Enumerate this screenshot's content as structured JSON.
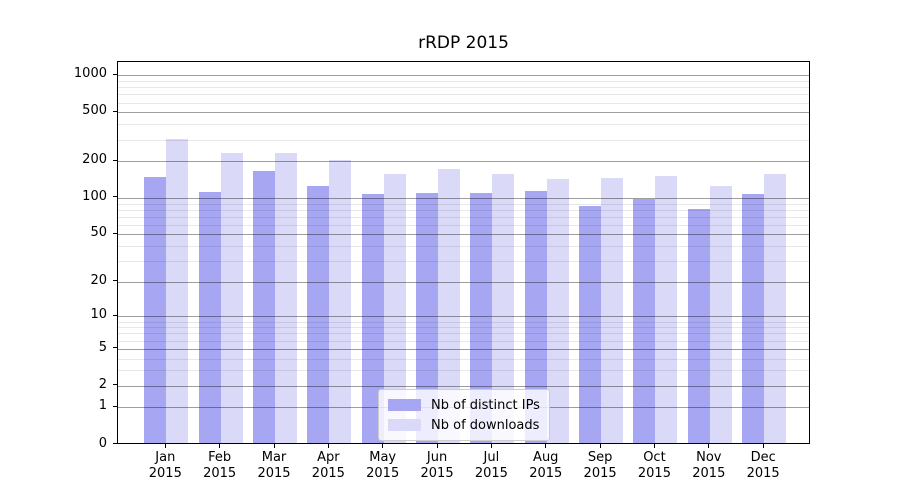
{
  "chart_data": {
    "type": "bar",
    "title": "rRDP 2015",
    "yscale": "log1p",
    "grid": true,
    "legend_position": "lower center",
    "xlabel": "",
    "ylabel": "",
    "ylim": [
      0,
      1280
    ],
    "categories": [
      "Jan 2015",
      "Feb 2015",
      "Mar 2015",
      "Apr 2015",
      "May 2015",
      "Jun 2015",
      "Jul 2015",
      "Aug 2015",
      "Sep 2015",
      "Oct 2015",
      "Nov 2015",
      "Dec 2015"
    ],
    "series": [
      {
        "name": "Nb of distinct IPs",
        "color": "#a6a6f2",
        "values": [
          145,
          109,
          162,
          122,
          104,
          106,
          106,
          111,
          84,
          95,
          79,
          104
        ]
      },
      {
        "name": "Nb of downloads",
        "color": "#dadaf8",
        "values": [
          293,
          225,
          227,
          199,
          153,
          168,
          154,
          139,
          142,
          148,
          122,
          154
        ]
      }
    ],
    "yticks": [
      1000,
      500,
      200,
      100,
      50,
      20,
      10,
      5,
      2,
      1,
      0
    ],
    "minor_yticks": [
      3,
      4,
      6,
      7,
      8,
      9,
      30,
      40,
      60,
      70,
      80,
      90,
      300,
      400,
      600,
      700,
      800,
      900
    ]
  },
  "colors": {
    "spine": "#000000",
    "major_grid": "#a0a0a0",
    "minor_grid": "#e6e6e6",
    "legend_border": "#cccccc"
  }
}
